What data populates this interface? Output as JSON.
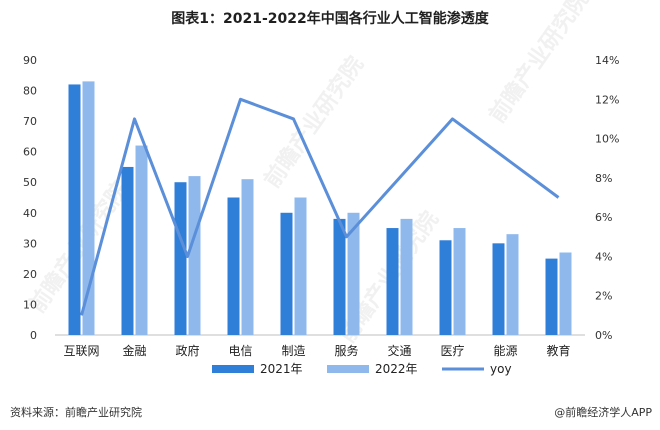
{
  "title": "图表1：2021-2022年中国各行业人工智能渗透度",
  "source_note": "资料来源：前瞻产业研究院",
  "credit": "@前瞻经济学人APP",
  "watermark": "前瞻产业研究院",
  "chart_data": {
    "type": "bar",
    "categories": [
      "互联网",
      "金融",
      "政府",
      "电信",
      "制造",
      "服务",
      "交通",
      "医疗",
      "能源",
      "教育"
    ],
    "series": [
      {
        "name": "2021年",
        "type": "bar",
        "axis": "left",
        "color": "#2f7ed8",
        "values": [
          82,
          55,
          50,
          45,
          40,
          38,
          35,
          31,
          30,
          25
        ]
      },
      {
        "name": "2022年",
        "type": "bar",
        "axis": "left",
        "color": "#8fb8ec",
        "values": [
          83,
          62,
          52,
          51,
          45,
          40,
          38,
          35,
          33,
          27
        ]
      },
      {
        "name": "yoy",
        "type": "line",
        "axis": "right",
        "color": "#5b8fd9",
        "values": [
          1,
          11,
          4,
          12,
          11,
          5,
          8,
          11,
          9,
          7
        ]
      }
    ],
    "left_axis": {
      "ylim": [
        0,
        90
      ],
      "ticks": [
        "0",
        "10",
        "20",
        "30",
        "40",
        "50",
        "60",
        "70",
        "80",
        "90"
      ]
    },
    "right_axis": {
      "ylim": [
        0,
        14
      ],
      "ticks": [
        "0%",
        "2%",
        "4%",
        "6%",
        "8%",
        "10%",
        "12%",
        "14%"
      ]
    },
    "grid": false,
    "legend_position": "bottom"
  }
}
